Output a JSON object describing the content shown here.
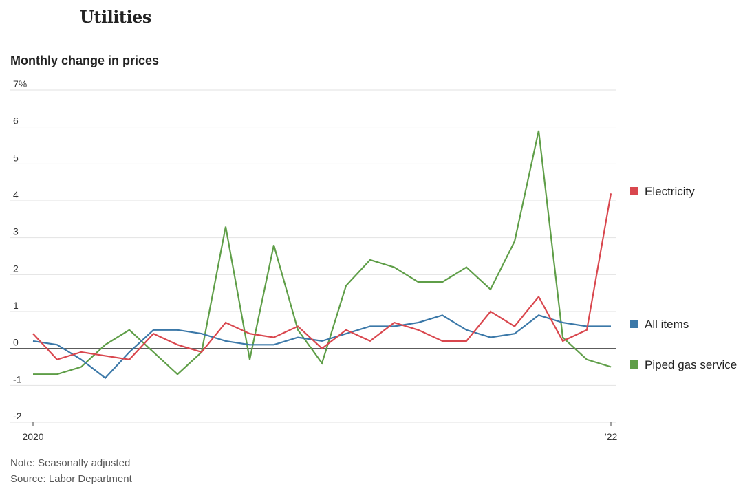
{
  "header": {
    "title": "Utilities",
    "subtitle": "Monthly change in prices"
  },
  "footer": {
    "note": "Note: Seasonally adjusted",
    "source": "Source: Labor Department"
  },
  "chart_data": {
    "type": "line",
    "title": "Utilities",
    "subtitle": "Monthly change in prices",
    "unit": "%",
    "x": [
      "Jan 2020",
      "Feb 2020",
      "Mar 2020",
      "Apr 2020",
      "May 2020",
      "Jun 2020",
      "Jul 2020",
      "Aug 2020",
      "Sep 2020",
      "Oct 2020",
      "Nov 2020",
      "Dec 2020",
      "Jan 2021",
      "Feb 2021",
      "Mar 2021",
      "Apr 2021",
      "May 2021",
      "Jun 2021",
      "Jul 2021",
      "Aug 2021",
      "Sep 2021",
      "Oct 2021",
      "Nov 2021",
      "Dec 2021",
      "Jan 2022"
    ],
    "x_tick_labels": [
      {
        "index": 0,
        "label": "2020"
      },
      {
        "index": 24,
        "label": "’22"
      }
    ],
    "ylim": [
      -2,
      7
    ],
    "y_ticks": [
      {
        "value": 7,
        "label": "7%"
      },
      {
        "value": 6,
        "label": "6"
      },
      {
        "value": 5,
        "label": "5"
      },
      {
        "value": 4,
        "label": "4"
      },
      {
        "value": 3,
        "label": "3"
      },
      {
        "value": 2,
        "label": "2"
      },
      {
        "value": 1,
        "label": "1"
      },
      {
        "value": 0,
        "label": "0"
      },
      {
        "value": -1,
        "label": "-1"
      },
      {
        "value": -2,
        "label": "-2"
      }
    ],
    "grid": true,
    "legend_placement": "right, next to line ends",
    "series": [
      {
        "name": "Electricity",
        "color": "#d9474e",
        "values": [
          0.4,
          -0.3,
          -0.1,
          -0.2,
          -0.3,
          0.4,
          0.1,
          -0.1,
          0.7,
          0.4,
          0.3,
          0.6,
          0.0,
          0.5,
          0.2,
          0.7,
          0.5,
          0.2,
          0.2,
          1.0,
          0.6,
          1.4,
          0.2,
          0.5,
          4.2
        ]
      },
      {
        "name": "All items",
        "color": "#3b78a8",
        "values": [
          0.2,
          0.1,
          -0.3,
          -0.8,
          -0.1,
          0.5,
          0.5,
          0.4,
          0.2,
          0.1,
          0.1,
          0.3,
          0.2,
          0.4,
          0.6,
          0.6,
          0.7,
          0.9,
          0.5,
          0.3,
          0.4,
          0.9,
          0.7,
          0.6,
          0.6
        ]
      },
      {
        "name": "Piped gas service",
        "color": "#5f9e48",
        "values": [
          -0.7,
          -0.7,
          -0.5,
          0.1,
          0.5,
          -0.1,
          -0.7,
          -0.1,
          3.3,
          -0.3,
          2.8,
          0.5,
          -0.4,
          1.7,
          2.4,
          2.2,
          1.8,
          1.8,
          2.2,
          1.6,
          2.9,
          5.9,
          0.3,
          -0.3,
          -0.5
        ]
      }
    ]
  }
}
